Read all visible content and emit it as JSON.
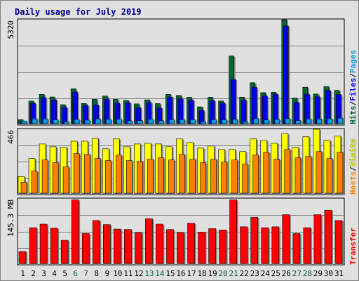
{
  "chart_data": {
    "type": "bar",
    "title": "Daily usage for July 2019",
    "categories": [
      "1",
      "2",
      "3",
      "4",
      "5",
      "6",
      "7",
      "8",
      "9",
      "10",
      "11",
      "12",
      "13",
      "14",
      "15",
      "16",
      "17",
      "18",
      "19",
      "20",
      "21",
      "22",
      "23",
      "24",
      "25",
      "26",
      "27",
      "28",
      "29",
      "30",
      "31"
    ],
    "weekend_days": [
      "6",
      "7",
      "13",
      "14",
      "20",
      "21",
      "27",
      "28"
    ],
    "panels": [
      {
        "id": "hits",
        "max_label": "5320",
        "ylim": [
          0,
          5320
        ],
        "right_label": [
          "Hits",
          "Files",
          "Pages"
        ],
        "series": [
          {
            "name": "Hits",
            "color": "#006633",
            "values": [
              235,
              1185,
              1525,
              1390,
              1000,
              1810,
              1060,
              1270,
              1440,
              1270,
              1220,
              1040,
              1245,
              1055,
              1525,
              1470,
              1375,
              890,
              1380,
              1185,
              3475,
              1380,
              2115,
              1610,
              1630,
              5320,
              1340,
              1885,
              1545,
              1920,
              1725
            ]
          },
          {
            "name": "Files",
            "color": "#0000e6",
            "values": [
              135,
              1070,
              1360,
              1245,
              865,
              1640,
              960,
              980,
              1285,
              1080,
              1095,
              850,
              1105,
              825,
              1385,
              1300,
              1220,
              710,
              1205,
              1080,
              2285,
              1235,
              1890,
              1440,
              1530,
              5000,
              1120,
              1530,
              1400,
              1715,
              1515
            ]
          },
          {
            "name": "Pages",
            "color": "#00a0e0",
            "values": [
              170,
              285,
              280,
              225,
              125,
              255,
              215,
              280,
              260,
              265,
              180,
              190,
              265,
              190,
              245,
              245,
              240,
              130,
              240,
              240,
              255,
              125,
              300,
              225,
              255,
              290,
              195,
              280,
              275,
              290,
              320
            ]
          }
        ]
      },
      {
        "id": "visits",
        "max_label": "466",
        "ylim": [
          0,
          466
        ],
        "right_label": [
          "Hosts",
          "Visits"
        ],
        "series": [
          {
            "name": "Visits",
            "color": "#ffff00",
            "values": [
              125,
              255,
              360,
              340,
              335,
              380,
              380,
              400,
              325,
              396,
              340,
              360,
              365,
              360,
              340,
              396,
              370,
              330,
              345,
              320,
              320,
              305,
              396,
              386,
              365,
              435,
              335,
              412,
              466,
              386,
              416
            ]
          },
          {
            "name": "Hosts",
            "color": "#ff8000",
            "values": [
              85,
              165,
              245,
              225,
              195,
              290,
              285,
              255,
              240,
              280,
              240,
              235,
              250,
              260,
              245,
              285,
              250,
              225,
              250,
              230,
              245,
              215,
              280,
              300,
              250,
              320,
              260,
              270,
              305,
              255,
              300
            ]
          }
        ]
      },
      {
        "id": "kbytes",
        "max_label": "145.3 MB",
        "ylim": [
          0,
          145.3
        ],
        "right_label": [
          "Transfer"
        ],
        "series": [
          {
            "name": "Transfer",
            "color": "#ff0000",
            "values": [
              28,
              81,
              89,
              80,
              53,
              143,
              68,
              97,
              88,
              78,
              77,
              70,
              101,
              89,
              77,
              70,
              91,
              71,
              79,
              76,
              143,
              83,
              104,
              81,
              83,
              110,
              68,
              81,
              110,
              120,
              97
            ]
          }
        ]
      }
    ]
  },
  "colors": {
    "background": "#e0e0e0",
    "title": "#00009a",
    "weekend_label": "#006633",
    "weekday_label": "#000000",
    "hits_label": "#006633",
    "files_label": "#0000e6",
    "pages_label": "#00a0e0",
    "hosts_label": "#ff8000",
    "visits_label": "#ffff00",
    "transfer_label": "#ff0000"
  }
}
